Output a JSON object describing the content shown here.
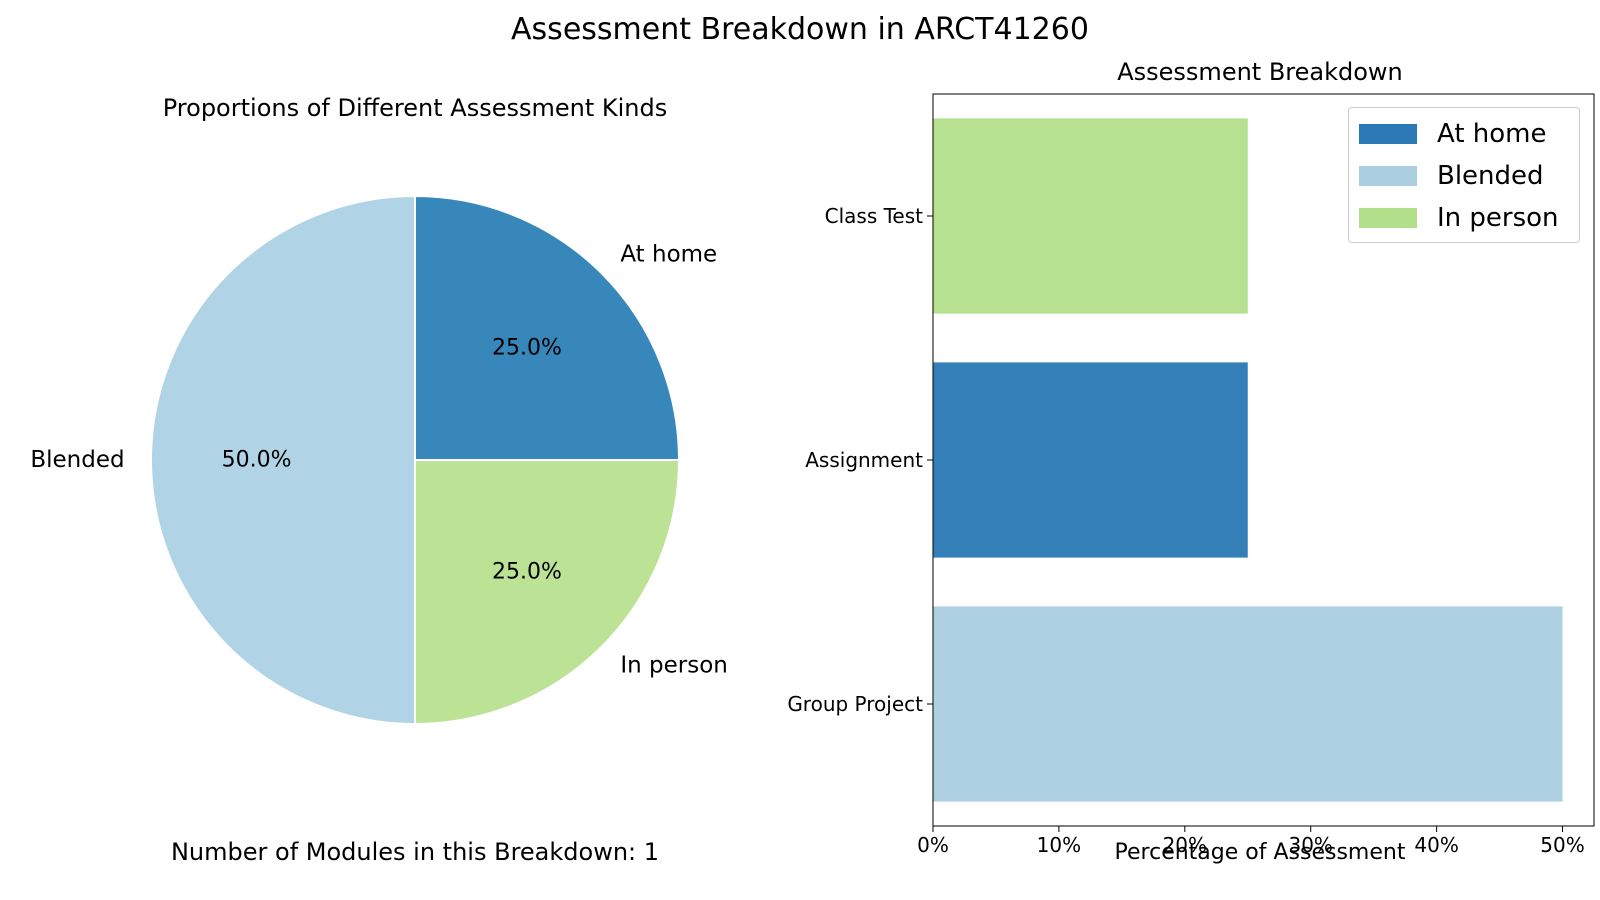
{
  "figure": {
    "title": "Assessment Breakdown in ARCT41260",
    "footer_note": "Number of Modules in this Breakdown: 1"
  },
  "chart_data": [
    {
      "type": "pie",
      "title": "Proportions of Different Assessment Kinds",
      "slices": [
        {
          "label": "At home",
          "value": 25.0,
          "pct_label": "25.0%",
          "color": "#3787bb"
        },
        {
          "label": "In person",
          "value": 25.0,
          "pct_label": "25.0%",
          "color": "#bce395"
        },
        {
          "label": "Blended",
          "value": 50.0,
          "pct_label": "50.0%",
          "color": "#b0d3e5"
        }
      ]
    },
    {
      "type": "bar",
      "orientation": "horizontal",
      "title": "Assessment Breakdown",
      "xlabel": "Percentage of Assessment",
      "ylabel": "",
      "xlim": [
        0,
        52.5
      ],
      "xticks": [
        0,
        10,
        20,
        30,
        40,
        50
      ],
      "xtick_labels": [
        "0%",
        "10%",
        "20%",
        "30%",
        "40%",
        "50%"
      ],
      "categories": [
        "Class Test",
        "Assignment",
        "Group Project"
      ],
      "values": [
        25,
        25,
        50
      ],
      "bar_kinds": [
        "In person",
        "At home",
        "Blended"
      ],
      "legend": {
        "position": "top-right",
        "entries": [
          {
            "label": "At home",
            "color": "#2a78b5"
          },
          {
            "label": "Blended",
            "color": "#a9cfe1"
          },
          {
            "label": "In person",
            "color": "#b2df8a"
          }
        ]
      }
    }
  ]
}
